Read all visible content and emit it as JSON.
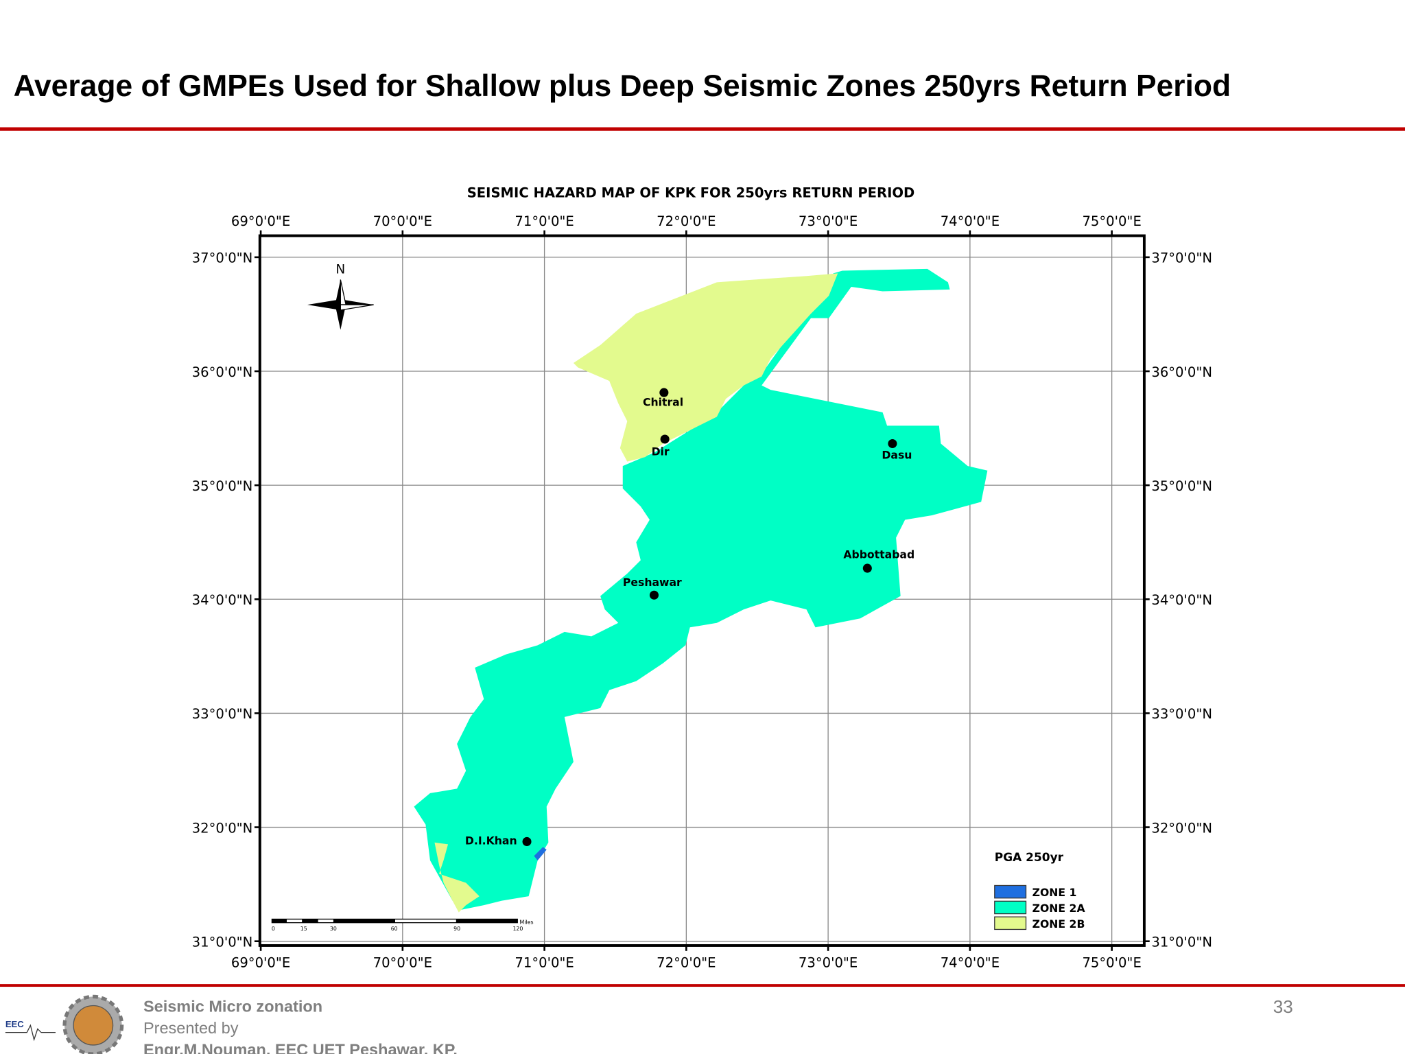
{
  "header": {
    "title": "Average of GMPEs Used for Shallow plus Deep Seismic Zones 250yrs Return Period"
  },
  "map": {
    "title": "SEISMIC HAZARD MAP OF KPK FOR 250yrs RETURN PERIOD",
    "longitude_labels": [
      "69°0'0\"E",
      "70°0'0\"E",
      "71°0'0\"E",
      "72°0'0\"E",
      "73°0'0\"E",
      "74°0'0\"E",
      "75°0'0\"E"
    ],
    "latitude_labels": [
      "37°0'0\"N",
      "36°0'0\"N",
      "35°0'0\"N",
      "34°0'0\"N",
      "33°0'0\"N",
      "32°0'0\"N",
      "31°0'0\"N"
    ],
    "north_label": "N",
    "cities": [
      "Chitral",
      "Dir",
      "Dasu",
      "Abbottabad",
      "Peshawar",
      "D.I.Khan"
    ],
    "legend": {
      "title": "PGA 250yr",
      "items": [
        "ZONE 1",
        "ZONE 2A",
        "ZONE 2B"
      ]
    },
    "scale_bar": {
      "labels": [
        "0",
        "15",
        "30",
        "60",
        "90",
        "120"
      ],
      "unit": "Miles"
    }
  },
  "footer": {
    "line1": "Seismic Micro zonation",
    "line2": "Presented by",
    "line3": "Engr.M.Nouman, EEC UET Peshawar, KP.",
    "page_number": "33",
    "logo_text": "EEC"
  }
}
